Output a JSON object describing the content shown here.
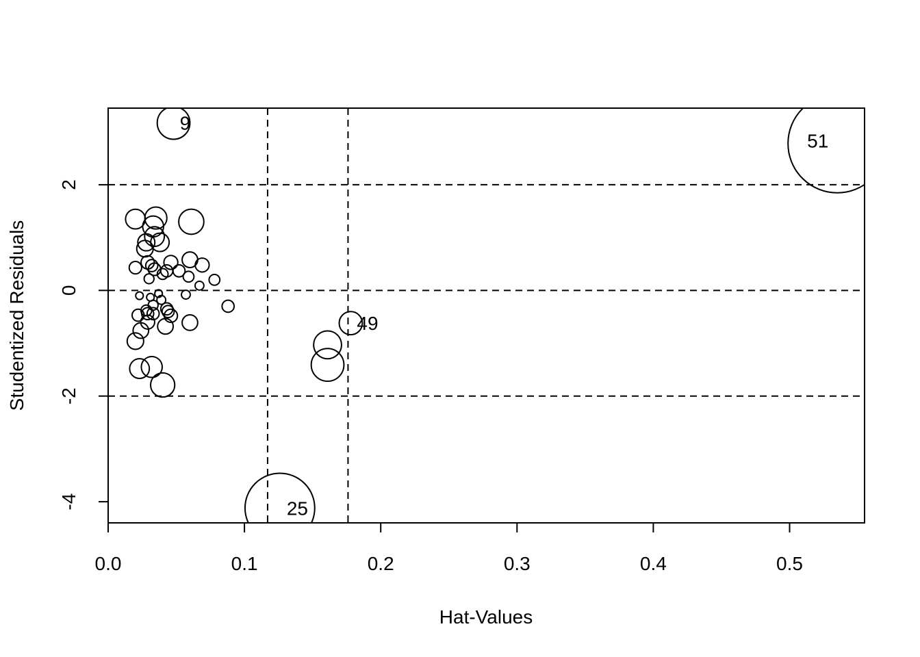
{
  "chart_data": {
    "type": "scatter",
    "xlabel": "Hat-Values",
    "ylabel": "Studentized Residuals",
    "xlim": [
      0.0,
      0.555
    ],
    "ylim": [
      -4.4,
      3.45
    ],
    "x_ticks": [
      {
        "value": 0.0,
        "label": "0.0"
      },
      {
        "value": 0.1,
        "label": "0.1"
      },
      {
        "value": 0.2,
        "label": "0.2"
      },
      {
        "value": 0.3,
        "label": "0.3"
      },
      {
        "value": 0.4,
        "label": "0.4"
      },
      {
        "value": 0.5,
        "label": "0.5"
      }
    ],
    "y_ticks": [
      {
        "value": -4,
        "label": "-4"
      },
      {
        "value": -2,
        "label": "-2"
      },
      {
        "value": 0,
        "label": "0"
      },
      {
        "value": 2,
        "label": "2"
      }
    ],
    "reference_lines": {
      "vertical": [
        0.117,
        0.176
      ],
      "horizontal": [
        -2,
        0,
        2
      ],
      "style": "dashed"
    },
    "bubble_size_meaning": "Cook's distance",
    "points": [
      {
        "x": 0.048,
        "y": 3.17,
        "size": 0.11,
        "label": "9"
      },
      {
        "x": 0.535,
        "y": 2.78,
        "size": 1.0,
        "label": "51"
      },
      {
        "x": 0.126,
        "y": -4.12,
        "size": 0.5,
        "label": "25"
      },
      {
        "x": 0.178,
        "y": -0.62,
        "size": 0.055,
        "label": "49"
      },
      {
        "x": 0.161,
        "y": -1.03,
        "size": 0.08
      },
      {
        "x": 0.161,
        "y": -1.41,
        "size": 0.11
      },
      {
        "x": 0.02,
        "y": 1.35,
        "size": 0.04
      },
      {
        "x": 0.035,
        "y": 1.37,
        "size": 0.05
      },
      {
        "x": 0.061,
        "y": 1.3,
        "size": 0.065
      },
      {
        "x": 0.033,
        "y": 1.21,
        "size": 0.045
      },
      {
        "x": 0.034,
        "y": 1.02,
        "size": 0.04
      },
      {
        "x": 0.028,
        "y": 0.91,
        "size": 0.03
      },
      {
        "x": 0.038,
        "y": 0.91,
        "size": 0.035
      },
      {
        "x": 0.027,
        "y": 0.79,
        "size": 0.028
      },
      {
        "x": 0.06,
        "y": 0.58,
        "size": 0.025
      },
      {
        "x": 0.046,
        "y": 0.53,
        "size": 0.02
      },
      {
        "x": 0.029,
        "y": 0.53,
        "size": 0.018
      },
      {
        "x": 0.069,
        "y": 0.48,
        "size": 0.02
      },
      {
        "x": 0.032,
        "y": 0.47,
        "size": 0.015
      },
      {
        "x": 0.02,
        "y": 0.43,
        "size": 0.016
      },
      {
        "x": 0.034,
        "y": 0.4,
        "size": 0.016
      },
      {
        "x": 0.052,
        "y": 0.37,
        "size": 0.015
      },
      {
        "x": 0.043,
        "y": 0.37,
        "size": 0.015
      },
      {
        "x": 0.04,
        "y": 0.31,
        "size": 0.012
      },
      {
        "x": 0.059,
        "y": 0.26,
        "size": 0.012
      },
      {
        "x": 0.078,
        "y": 0.2,
        "size": 0.012
      },
      {
        "x": 0.03,
        "y": 0.22,
        "size": 0.01
      },
      {
        "x": 0.067,
        "y": 0.09,
        "size": 0.008
      },
      {
        "x": 0.037,
        "y": -0.06,
        "size": 0.006
      },
      {
        "x": 0.023,
        "y": -0.1,
        "size": 0.006
      },
      {
        "x": 0.057,
        "y": -0.08,
        "size": 0.008
      },
      {
        "x": 0.031,
        "y": -0.13,
        "size": 0.006
      },
      {
        "x": 0.039,
        "y": -0.18,
        "size": 0.008
      },
      {
        "x": 0.033,
        "y": -0.28,
        "size": 0.01
      },
      {
        "x": 0.088,
        "y": -0.3,
        "size": 0.015
      },
      {
        "x": 0.043,
        "y": -0.35,
        "size": 0.015
      },
      {
        "x": 0.028,
        "y": -0.38,
        "size": 0.012
      },
      {
        "x": 0.044,
        "y": -0.4,
        "size": 0.015
      },
      {
        "x": 0.033,
        "y": -0.44,
        "size": 0.015
      },
      {
        "x": 0.029,
        "y": -0.44,
        "size": 0.015
      },
      {
        "x": 0.022,
        "y": -0.47,
        "size": 0.015
      },
      {
        "x": 0.046,
        "y": -0.48,
        "size": 0.018
      },
      {
        "x": 0.029,
        "y": -0.6,
        "size": 0.02
      },
      {
        "x": 0.06,
        "y": -0.61,
        "size": 0.025
      },
      {
        "x": 0.042,
        "y": -0.68,
        "size": 0.025
      },
      {
        "x": 0.024,
        "y": -0.76,
        "size": 0.025
      },
      {
        "x": 0.02,
        "y": -0.96,
        "size": 0.028
      },
      {
        "x": 0.023,
        "y": -1.48,
        "size": 0.04
      },
      {
        "x": 0.032,
        "y": -1.45,
        "size": 0.045
      },
      {
        "x": 0.04,
        "y": -1.79,
        "size": 0.06
      }
    ]
  }
}
